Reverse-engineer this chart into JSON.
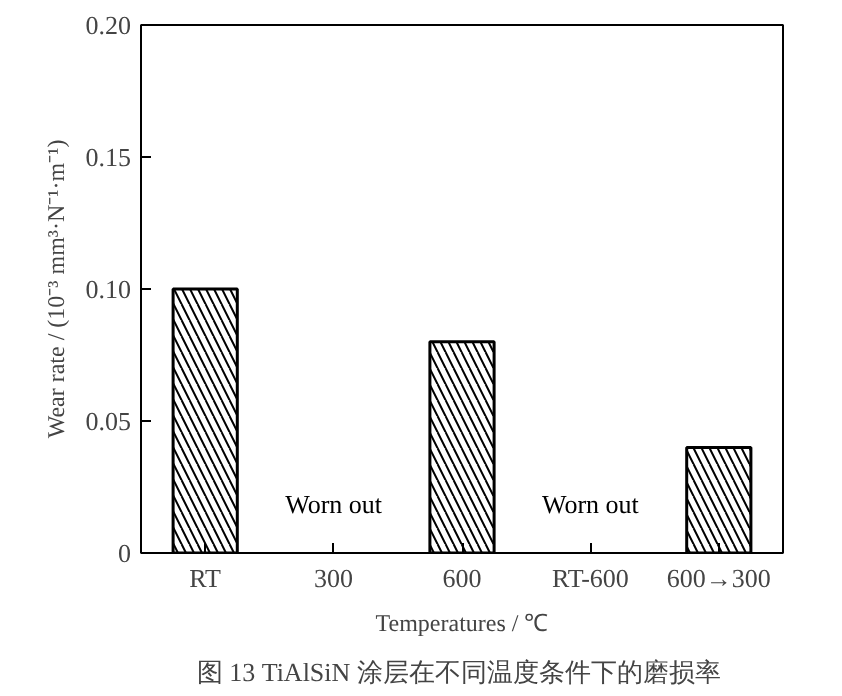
{
  "chart_data": {
    "type": "bar",
    "categories": [
      "RT",
      "300",
      "600",
      "RT-600",
      "600→300"
    ],
    "values": [
      0.1,
      null,
      0.08,
      null,
      0.04
    ],
    "color": "#000000",
    "xlabel": "Temperatures / ℃",
    "ylabel": "Wear rate / (10⁻³ mm³·N⁻¹·m⁻¹)",
    "ylim": [
      0,
      0.2
    ],
    "yticks": [
      0,
      0.05,
      {
        "value": 0.1,
        "label": "0.10"
      },
      0.15,
      {
        "value": 0.2,
        "label": "0.20"
      }
    ],
    "grid": false,
    "annotations": [
      "Worn out",
      "Worn out",
      "图 13  TiAlSiN 涂层在不同温度条件下的磨损率"
    ]
  }
}
